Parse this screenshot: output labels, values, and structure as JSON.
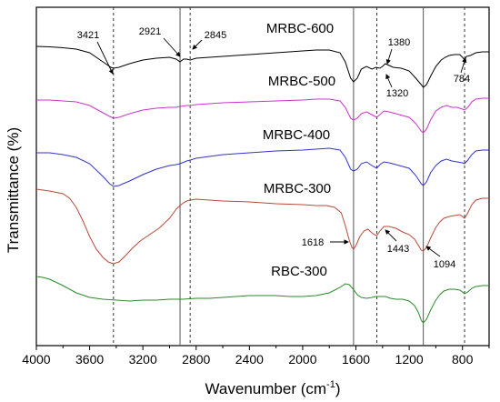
{
  "chart_data": {
    "type": "line",
    "xlabel_main": "Wavenumber (cm",
    "xlabel_sup": "-1",
    "xlabel_tail": ")",
    "ylabel": "Transmittance (%)",
    "xlim": [
      4000,
      600
    ],
    "x_reversed": true,
    "x_ticks": [
      "4000",
      "3600",
      "3200",
      "2800",
      "2400",
      "2000",
      "1600",
      "1200",
      "800"
    ],
    "grid": false,
    "series": [
      {
        "name": "MRBC-600",
        "color": "#000000",
        "points": [
          [
            4000,
            43
          ],
          [
            3900,
            43.5
          ],
          [
            3800,
            44.5
          ],
          [
            3700,
            46
          ],
          [
            3600,
            50
          ],
          [
            3500,
            60
          ],
          [
            3440,
            66
          ],
          [
            3421,
            67
          ],
          [
            3380,
            66
          ],
          [
            3300,
            62
          ],
          [
            3200,
            58
          ],
          [
            3100,
            56
          ],
          [
            3000,
            55
          ],
          [
            2950,
            57
          ],
          [
            2921,
            60
          ],
          [
            2895,
            57
          ],
          [
            2870,
            57
          ],
          [
            2845,
            58
          ],
          [
            2800,
            56
          ],
          [
            2600,
            54
          ],
          [
            2400,
            52
          ],
          [
            2200,
            50
          ],
          [
            2000,
            48
          ],
          [
            1900,
            47
          ],
          [
            1800,
            47
          ],
          [
            1720,
            50
          ],
          [
            1680,
            60
          ],
          [
            1640,
            78
          ],
          [
            1618,
            82
          ],
          [
            1590,
            78
          ],
          [
            1560,
            68
          ],
          [
            1520,
            65
          ],
          [
            1480,
            68
          ],
          [
            1450,
            66
          ],
          [
            1420,
            67
          ],
          [
            1400,
            65
          ],
          [
            1380,
            62
          ],
          [
            1350,
            64
          ],
          [
            1320,
            66
          ],
          [
            1260,
            67
          ],
          [
            1200,
            70
          ],
          [
            1150,
            78
          ],
          [
            1110,
            85
          ],
          [
            1094,
            88
          ],
          [
            1070,
            85
          ],
          [
            1040,
            76
          ],
          [
            1000,
            65
          ],
          [
            960,
            58
          ],
          [
            930,
            55
          ],
          [
            900,
            53
          ],
          [
            860,
            52
          ],
          [
            820,
            52
          ],
          [
            800,
            55
          ],
          [
            784,
            58
          ],
          [
            770,
            54
          ],
          [
            740,
            53
          ],
          [
            700,
            50
          ],
          [
            650,
            49
          ],
          [
            600,
            49
          ]
        ]
      },
      {
        "name": "MRBC-500",
        "color": "#cc33cc",
        "points": [
          [
            4000,
            102
          ],
          [
            3900,
            102
          ],
          [
            3800,
            103
          ],
          [
            3700,
            104
          ],
          [
            3600,
            108
          ],
          [
            3500,
            116
          ],
          [
            3450,
            120
          ],
          [
            3421,
            122
          ],
          [
            3380,
            121
          ],
          [
            3300,
            117
          ],
          [
            3200,
            113
          ],
          [
            3100,
            111
          ],
          [
            3000,
            110
          ],
          [
            2950,
            110
          ],
          [
            2921,
            109
          ],
          [
            2870,
            108
          ],
          [
            2845,
            108
          ],
          [
            2800,
            107
          ],
          [
            2600,
            105
          ],
          [
            2400,
            104
          ],
          [
            2200,
            103
          ],
          [
            2000,
            102
          ],
          [
            1900,
            101
          ],
          [
            1800,
            101
          ],
          [
            1720,
            103
          ],
          [
            1680,
            110
          ],
          [
            1640,
            122
          ],
          [
            1618,
            124
          ],
          [
            1590,
            122
          ],
          [
            1560,
            117
          ],
          [
            1520,
            115
          ],
          [
            1470,
            119
          ],
          [
            1443,
            121
          ],
          [
            1420,
            118
          ],
          [
            1390,
            114
          ],
          [
            1350,
            115
          ],
          [
            1300,
            117
          ],
          [
            1250,
            119
          ],
          [
            1200,
            121
          ],
          [
            1150,
            128
          ],
          [
            1110,
            136
          ],
          [
            1094,
            138
          ],
          [
            1070,
            134
          ],
          [
            1040,
            124
          ],
          [
            1000,
            114
          ],
          [
            960,
            110
          ],
          [
            920,
            108
          ],
          [
            880,
            110
          ],
          [
            840,
            110
          ],
          [
            800,
            112
          ],
          [
            784,
            113
          ],
          [
            760,
            110
          ],
          [
            730,
            104
          ],
          [
            700,
            101
          ],
          [
            650,
            100
          ],
          [
            600,
            100
          ]
        ]
      },
      {
        "name": "MRBC-400",
        "color": "#3333cc",
        "points": [
          [
            4000,
            160
          ],
          [
            3900,
            160
          ],
          [
            3800,
            162
          ],
          [
            3700,
            165
          ],
          [
            3600,
            172
          ],
          [
            3500,
            186
          ],
          [
            3450,
            194
          ],
          [
            3421,
            197
          ],
          [
            3380,
            196
          ],
          [
            3300,
            191
          ],
          [
            3200,
            184
          ],
          [
            3100,
            178
          ],
          [
            3000,
            174
          ],
          [
            2950,
            173
          ],
          [
            2921,
            172
          ],
          [
            2870,
            169
          ],
          [
            2845,
            168
          ],
          [
            2800,
            166
          ],
          [
            2600,
            162
          ],
          [
            2400,
            160
          ],
          [
            2200,
            158
          ],
          [
            2000,
            157
          ],
          [
            1900,
            156
          ],
          [
            1800,
            155
          ],
          [
            1720,
            157
          ],
          [
            1680,
            165
          ],
          [
            1640,
            178
          ],
          [
            1618,
            180
          ],
          [
            1590,
            178
          ],
          [
            1560,
            172
          ],
          [
            1520,
            170
          ],
          [
            1470,
            175
          ],
          [
            1443,
            177
          ],
          [
            1420,
            173
          ],
          [
            1390,
            170
          ],
          [
            1350,
            171
          ],
          [
            1300,
            173
          ],
          [
            1250,
            175
          ],
          [
            1200,
            177
          ],
          [
            1150,
            185
          ],
          [
            1110,
            194
          ],
          [
            1094,
            196
          ],
          [
            1070,
            192
          ],
          [
            1040,
            182
          ],
          [
            1000,
            174
          ],
          [
            960,
            169
          ],
          [
            920,
            167
          ],
          [
            880,
            169
          ],
          [
            840,
            170
          ],
          [
            800,
            171
          ],
          [
            784,
            172
          ],
          [
            760,
            168
          ],
          [
            730,
            162
          ],
          [
            700,
            158
          ],
          [
            650,
            157
          ],
          [
            600,
            157
          ]
        ]
      },
      {
        "name": "MRBC-300",
        "color": "#b84a38",
        "points": [
          [
            4000,
            200
          ],
          [
            3900,
            202
          ],
          [
            3800,
            205
          ],
          [
            3750,
            210
          ],
          [
            3700,
            220
          ],
          [
            3650,
            235
          ],
          [
            3600,
            252
          ],
          [
            3550,
            266
          ],
          [
            3500,
            275
          ],
          [
            3460,
            280
          ],
          [
            3421,
            282
          ],
          [
            3380,
            280
          ],
          [
            3330,
            273
          ],
          [
            3280,
            265
          ],
          [
            3220,
            257
          ],
          [
            3150,
            250
          ],
          [
            3080,
            243
          ],
          [
            3000,
            232
          ],
          [
            2950,
            222
          ],
          [
            2921,
            218
          ],
          [
            2895,
            215
          ],
          [
            2870,
            213
          ],
          [
            2845,
            212
          ],
          [
            2800,
            211
          ],
          [
            2700,
            212
          ],
          [
            2600,
            213
          ],
          [
            2400,
            214
          ],
          [
            2200,
            216
          ],
          [
            2000,
            217
          ],
          [
            1900,
            218
          ],
          [
            1820,
            218
          ],
          [
            1760,
            220
          ],
          [
            1710,
            226
          ],
          [
            1680,
            240
          ],
          [
            1650,
            256
          ],
          [
            1630,
            264
          ],
          [
            1618,
            266
          ],
          [
            1600,
            262
          ],
          [
            1570,
            252
          ],
          [
            1540,
            246
          ],
          [
            1510,
            244
          ],
          [
            1480,
            248
          ],
          [
            1460,
            250
          ],
          [
            1443,
            251
          ],
          [
            1420,
            246
          ],
          [
            1390,
            241
          ],
          [
            1350,
            241
          ],
          [
            1300,
            243
          ],
          [
            1250,
            247
          ],
          [
            1200,
            250
          ],
          [
            1160,
            255
          ],
          [
            1130,
            262
          ],
          [
            1110,
            267
          ],
          [
            1094,
            268
          ],
          [
            1070,
            264
          ],
          [
            1040,
            254
          ],
          [
            1000,
            242
          ],
          [
            970,
            236
          ],
          [
            940,
            232
          ],
          [
            900,
            230
          ],
          [
            860,
            229
          ],
          [
            820,
            228
          ],
          [
            800,
            230
          ],
          [
            784,
            232
          ],
          [
            760,
            226
          ],
          [
            730,
            217
          ],
          [
            700,
            212
          ],
          [
            650,
            210
          ],
          [
            600,
            210
          ]
        ]
      },
      {
        "name": "RBC-300",
        "color": "#2a8a2a",
        "points": [
          [
            4000,
            296
          ],
          [
            3950,
            297
          ],
          [
            3900,
            299
          ],
          [
            3800,
            306
          ],
          [
            3700,
            314
          ],
          [
            3600,
            319
          ],
          [
            3500,
            321
          ],
          [
            3400,
            322
          ],
          [
            3300,
            323
          ],
          [
            3200,
            322
          ],
          [
            3100,
            322
          ],
          [
            3000,
            321
          ],
          [
            2900,
            321
          ],
          [
            2800,
            320
          ],
          [
            2700,
            320
          ],
          [
            2600,
            319
          ],
          [
            2500,
            318
          ],
          [
            2400,
            317
          ],
          [
            2300,
            317
          ],
          [
            2200,
            317
          ],
          [
            2100,
            318
          ],
          [
            2000,
            318
          ],
          [
            1900,
            317
          ],
          [
            1800,
            314
          ],
          [
            1720,
            308
          ],
          [
            1680,
            304
          ],
          [
            1650,
            305
          ],
          [
            1620,
            310
          ],
          [
            1590,
            316
          ],
          [
            1560,
            319
          ],
          [
            1520,
            320
          ],
          [
            1480,
            319
          ],
          [
            1450,
            318
          ],
          [
            1420,
            318
          ],
          [
            1380,
            318
          ],
          [
            1340,
            320
          ],
          [
            1300,
            321
          ],
          [
            1250,
            321
          ],
          [
            1200,
            323
          ],
          [
            1160,
            328
          ],
          [
            1130,
            336
          ],
          [
            1110,
            344
          ],
          [
            1094,
            347
          ],
          [
            1070,
            343
          ],
          [
            1040,
            333
          ],
          [
            1000,
            322
          ],
          [
            970,
            316
          ],
          [
            940,
            312
          ],
          [
            900,
            310
          ],
          [
            860,
            310
          ],
          [
            820,
            311
          ],
          [
            800,
            313
          ],
          [
            784,
            315
          ],
          [
            760,
            313
          ],
          [
            730,
            309
          ],
          [
            700,
            307
          ],
          [
            650,
            306
          ],
          [
            600,
            306
          ]
        ]
      }
    ],
    "series_labels": [
      {
        "series": "MRBC-600",
        "text": "MRBC-600"
      },
      {
        "series": "MRBC-500",
        "text": "MRBC-500"
      },
      {
        "series": "MRBC-400",
        "text": "MRBC-400"
      },
      {
        "series": "MRBC-300",
        "text": "MRBC-300"
      },
      {
        "series": "RBC-300",
        "text": "RBC-300"
      }
    ],
    "reference_lines": [
      {
        "x": 3421,
        "style": "dashed"
      },
      {
        "x": 2921,
        "style": "solid"
      },
      {
        "x": 2845,
        "style": "dashed"
      },
      {
        "x": 1618,
        "style": "solid"
      },
      {
        "x": 1443,
        "style": "dashed"
      },
      {
        "x": 1094,
        "style": "solid"
      },
      {
        "x": 784,
        "style": "dashed"
      }
    ],
    "annotations": [
      "3421",
      "2921",
      "2845",
      "1380",
      "1320",
      "784",
      "1618",
      "1443",
      "1094"
    ]
  }
}
